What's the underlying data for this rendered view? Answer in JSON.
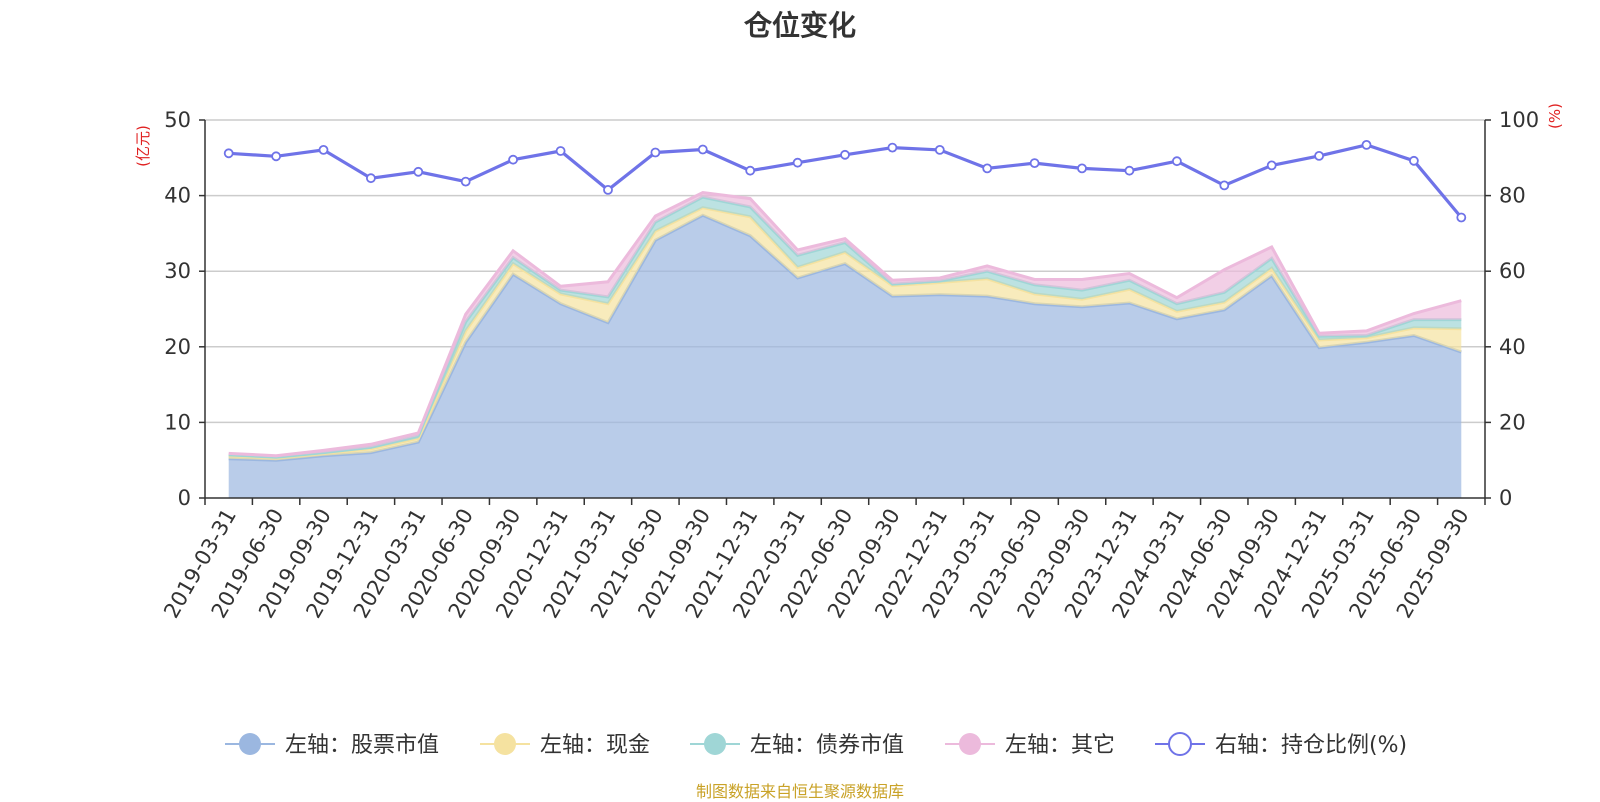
{
  "page": {
    "title": "仓位变化",
    "source": "制图数据来自恒生聚源数据库"
  },
  "chart_data": {
    "type": "area",
    "title": "仓位变化",
    "left_axis": {
      "unit_label": "(亿元)",
      "ylim": [
        0,
        50
      ],
      "ticks": [
        "0",
        "10",
        "20",
        "30",
        "40",
        "50"
      ]
    },
    "right_axis": {
      "unit_label": "(%)",
      "ylim": [
        0,
        100
      ],
      "ticks": [
        "0",
        "20",
        "40",
        "60",
        "80",
        "100"
      ]
    },
    "grid": true,
    "legend_position": "bottom",
    "categories": [
      "2019-03-31",
      "2019-06-30",
      "2019-09-30",
      "2019-12-31",
      "2020-03-31",
      "2020-06-30",
      "2020-09-30",
      "2020-12-31",
      "2021-03-31",
      "2021-06-30",
      "2021-09-30",
      "2021-12-31",
      "2022-03-31",
      "2022-06-30",
      "2022-09-30",
      "2022-12-31",
      "2023-03-31",
      "2023-06-30",
      "2023-09-30",
      "2023-12-31",
      "2024-03-31",
      "2024-06-30",
      "2024-09-30",
      "2024-12-31",
      "2025-03-31",
      "2025-06-30",
      "2025-09-30"
    ],
    "series": [
      {
        "name": "左轴：股票市值",
        "axis": "left",
        "stacked": true,
        "color": "#9bb7e0",
        "values": [
          5.2,
          5.0,
          5.6,
          6.0,
          7.4,
          20.6,
          29.6,
          25.7,
          23.2,
          34.1,
          37.4,
          34.7,
          29.1,
          31.0,
          26.7,
          26.9,
          26.7,
          25.7,
          25.3,
          25.8,
          23.7,
          24.9,
          29.4,
          19.9,
          20.6,
          21.5,
          19.3
        ]
      },
      {
        "name": "左轴：现金",
        "axis": "left",
        "stacked": true,
        "color": "#f5e2a0",
        "values": [
          0.4,
          0.3,
          0.3,
          0.5,
          0.5,
          1.5,
          1.4,
          1.3,
          2.5,
          1.2,
          1.0,
          2.5,
          1.4,
          1.5,
          1.4,
          1.6,
          2.3,
          1.3,
          1.0,
          1.8,
          1.0,
          1.0,
          1.0,
          1.0,
          0.6,
          1.0,
          3.1
        ]
      },
      {
        "name": "左轴：债券市值",
        "axis": "left",
        "stacked": true,
        "color": "#9fd6d6",
        "values": [
          0.1,
          0.1,
          0.1,
          0.2,
          0.3,
          1.2,
          0.8,
          0.5,
          0.9,
          1.2,
          1.4,
          1.3,
          1.6,
          1.3,
          0.2,
          0.2,
          1.0,
          1.2,
          1.2,
          1.2,
          1.0,
          1.3,
          1.3,
          0.5,
          0.3,
          1.1,
          1.2
        ]
      },
      {
        "name": "左轴：其它",
        "axis": "left",
        "stacked": true,
        "color": "#ecbadc",
        "values": [
          0.2,
          0.2,
          0.3,
          0.4,
          0.4,
          1.0,
          0.9,
          0.5,
          2.0,
          0.8,
          0.6,
          1.1,
          0.7,
          0.5,
          0.5,
          0.4,
          0.7,
          0.7,
          1.4,
          0.9,
          0.8,
          3.0,
          1.5,
          0.4,
          0.6,
          0.8,
          2.5
        ]
      },
      {
        "name": "右轴：持仓比例(%)",
        "axis": "right",
        "type": "line",
        "color": "#6f73e8",
        "values": [
          91.2,
          90.4,
          92.1,
          84.6,
          86.3,
          83.7,
          89.5,
          91.8,
          81.5,
          91.4,
          92.2,
          86.6,
          88.7,
          90.8,
          92.7,
          92.1,
          87.2,
          88.6,
          87.2,
          86.6,
          89.1,
          82.7,
          88.0,
          90.5,
          93.4,
          89.2,
          74.2
        ]
      }
    ]
  }
}
